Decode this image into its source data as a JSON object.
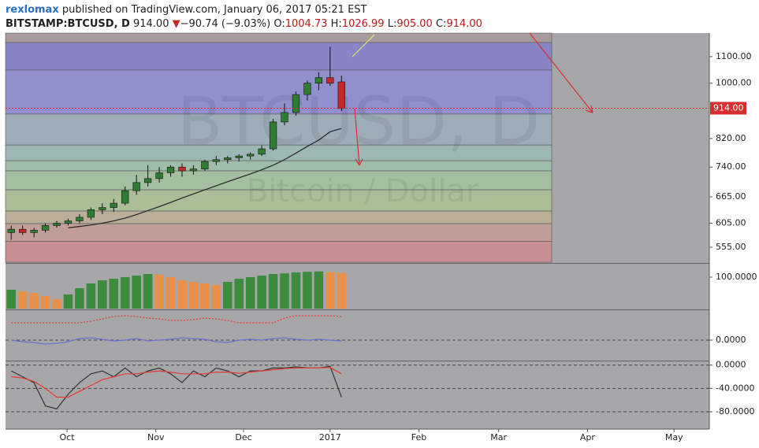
{
  "header": {
    "author": "rexlomax",
    "published": " published on TradingView.com, January 06, 2017 05:21 EST",
    "symbol": "BITSTAMP:BTCUSD, D",
    "last": "914.00",
    "change_arrow": "▼",
    "change": "−90.74 (−9.03%)",
    "ohlc": [
      {
        "label": "O:",
        "value": "1004.73"
      },
      {
        "label": "H:",
        "value": "1026.99"
      },
      {
        "label": "L:",
        "value": "905.00"
      },
      {
        "label": "C:",
        "value": "914.00"
      }
    ]
  },
  "chart_data": [
    {
      "type": "candlestick",
      "watermark": "BTCUSD, D",
      "watermark_sub": "Bitcoin / Dollar",
      "log_scale": true,
      "xlim": [
        0,
        61.8
      ],
      "xticks": [
        {
          "value": 5.4,
          "label": "Oct"
        },
        {
          "value": 13.2,
          "label": "Nov"
        },
        {
          "value": 20.9,
          "label": "Dec"
        },
        {
          "value": 28.5,
          "label": "2017"
        },
        {
          "value": 36.3,
          "label": "Feb"
        },
        {
          "value": 43.3,
          "label": "Mar"
        },
        {
          "value": 51.1,
          "label": "Apr"
        },
        {
          "value": 58.7,
          "label": "May"
        }
      ],
      "ylim": [
        526,
        1197
      ],
      "yticks": [
        {
          "value": 1100,
          "label": "1100.00"
        },
        {
          "value": 1000,
          "label": "1000.00"
        },
        {
          "value": 820,
          "label": "820.00"
        },
        {
          "value": 740,
          "label": "740.00"
        },
        {
          "value": 665,
          "label": "665.00"
        },
        {
          "value": 605,
          "label": "605.00"
        },
        {
          "value": 555,
          "label": "555.00"
        }
      ],
      "up_color": "#2e7d32",
      "down_color": "#c62828",
      "candles": {
        "open": [
          585,
          592,
          585,
          590,
          600,
          605,
          610,
          618,
          635,
          640,
          650,
          680,
          700,
          710,
          725,
          740,
          730,
          735,
          755,
          760,
          765,
          770,
          775,
          790,
          870,
          900,
          960,
          1000,
          1020,
          1004.73
        ],
        "high": [
          600,
          600,
          595,
          605,
          610,
          615,
          625,
          640,
          650,
          660,
          690,
          720,
          745,
          740,
          745,
          750,
          745,
          760,
          770,
          770,
          775,
          780,
          800,
          880,
          930,
          970,
          1010,
          1040,
          1140,
          1026.99
        ],
        "low": [
          570,
          580,
          575,
          585,
          595,
          600,
          605,
          612,
          625,
          630,
          645,
          670,
          690,
          700,
          715,
          715,
          720,
          730,
          745,
          750,
          755,
          760,
          770,
          785,
          860,
          890,
          940,
          975,
          990,
          905
        ],
        "close": [
          592,
          585,
          590,
          600,
          605,
          610,
          618,
          635,
          640,
          650,
          680,
          700,
          710,
          725,
          740,
          730,
          735,
          755,
          760,
          765,
          770,
          775,
          790,
          870,
          900,
          960,
          1000,
          1020,
          1000,
          914
        ]
      },
      "series": [
        {
          "color": "#222222",
          "values": [
            null,
            null,
            null,
            null,
            null,
            595,
            598,
            601,
            605,
            610,
            616,
            624,
            633,
            642,
            652,
            662,
            672,
            682,
            692,
            702,
            712,
            722,
            733,
            745,
            760,
            778,
            797,
            815,
            840,
            850
          ]
        }
      ],
      "zones": [
        {
          "from": 1157,
          "to": 1197,
          "color": "#a89a9c"
        },
        {
          "from": 1048,
          "to": 1157,
          "color": "#8884c6"
        },
        {
          "from": 895,
          "to": 1048,
          "color": "#9190cc"
        },
        {
          "from": 801,
          "to": 895,
          "color": "#9eaeb9"
        },
        {
          "from": 757,
          "to": 801,
          "color": "#9db7b5"
        },
        {
          "from": 730,
          "to": 757,
          "color": "#a0bda9"
        },
        {
          "from": 682,
          "to": 730,
          "color": "#a3bf9f"
        },
        {
          "from": 632,
          "to": 682,
          "color": "#abbe98"
        },
        {
          "from": 604,
          "to": 632,
          "color": "#b9ae98"
        },
        {
          "from": 567,
          "to": 604,
          "color": "#bf9f98"
        },
        {
          "from": 526,
          "to": 567,
          "color": "#c58f93"
        }
      ],
      "price_line": {
        "value": 914,
        "label": "914.00",
        "color": "#d32f2f"
      }
    },
    {
      "type": "bar",
      "ylim": [
        0,
        140
      ],
      "yticks": [
        {
          "value": 100,
          "label": "100.0000"
        }
      ],
      "up_color": "#3d8b3d",
      "down_color": "#e8914a",
      "values": [
        60,
        55,
        50,
        40,
        30,
        45,
        65,
        80,
        90,
        95,
        100,
        105,
        110,
        108,
        100,
        90,
        85,
        80,
        75,
        85,
        95,
        100,
        105,
        110,
        112,
        115,
        117,
        118,
        116,
        114
      ]
    },
    {
      "type": "line",
      "ylim": [
        -26,
        37
      ],
      "yticks": [
        {
          "value": 0,
          "label": "0.0000"
        }
      ],
      "series": [
        {
          "color": "#6a6fd0",
          "values": [
            0,
            -2,
            -3,
            -5,
            -4,
            -2,
            2,
            3,
            1,
            -1,
            0,
            2,
            -1,
            0,
            1,
            3,
            2,
            1,
            -2,
            -3,
            0,
            1,
            0,
            2,
            3,
            1,
            0,
            1,
            0,
            -1
          ]
        },
        {
          "color": "#e53935",
          "values": [
            22,
            22,
            22,
            22,
            22,
            22,
            22,
            24,
            27,
            30,
            31,
            30,
            28,
            27,
            25,
            25,
            26,
            28,
            27,
            25,
            22,
            22,
            22,
            22,
            28,
            31,
            31,
            31,
            31,
            30
          ]
        }
      ]
    },
    {
      "type": "line",
      "ylim": [
        -103,
        5
      ],
      "yticks": [
        {
          "value": 0,
          "label": "0.0000"
        },
        {
          "value": -40,
          "label": "-40.0000"
        },
        {
          "value": -80,
          "label": "-80.0000"
        }
      ],
      "series": [
        {
          "color": "#333333",
          "values": [
            -10,
            -20,
            -30,
            -70,
            -75,
            -50,
            -30,
            -15,
            -10,
            -20,
            -5,
            -20,
            -10,
            -5,
            -15,
            -30,
            -10,
            -20,
            -5,
            -10,
            -20,
            -10,
            -10,
            -5,
            -5,
            -3,
            -5,
            -5,
            -2,
            -55
          ]
        },
        {
          "color": "#e53935",
          "values": [
            -20,
            -22,
            -28,
            -40,
            -55,
            -55,
            -45,
            -35,
            -25,
            -20,
            -15,
            -15,
            -12,
            -10,
            -12,
            -15,
            -15,
            -15,
            -12,
            -12,
            -14,
            -12,
            -10,
            -8,
            -6,
            -5,
            -5,
            -5,
            -4,
            -15
          ]
        }
      ]
    }
  ]
}
